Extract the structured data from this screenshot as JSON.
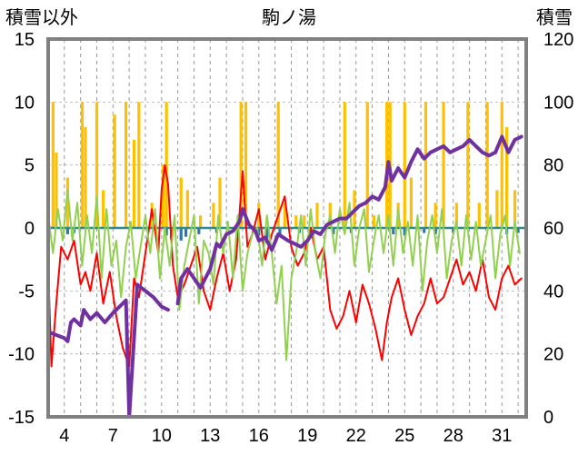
{
  "chart_data": {
    "type": "line",
    "title": "駒ノ湯",
    "ylabel_left": "積雪以外",
    "ylabel_right": "積雪",
    "ylim_left": [
      -15,
      15
    ],
    "ylim_right": [
      0,
      120
    ],
    "yticks_left": [
      "15",
      "10",
      "5",
      "0",
      "-5",
      "-10",
      "-15"
    ],
    "yticks_right": [
      "120",
      "100",
      "80",
      "60",
      "40",
      "20",
      "0"
    ],
    "xlim": [
      3,
      32.5
    ],
    "xticks": [
      4,
      7,
      10,
      13,
      16,
      19,
      22,
      25,
      28,
      31
    ],
    "xtick_labels": [
      "4",
      "7",
      "10",
      "13",
      "16",
      "19",
      "22",
      "25",
      "28",
      "31"
    ],
    "grid": true,
    "colors": {
      "snowfall": "#FFC000",
      "precip": "#2E75B6",
      "temperature": "#FF0000",
      "wind": "#92D050",
      "snow_depth": "#7030A0"
    },
    "series": [
      {
        "key": "snowfall",
        "axis": "left",
        "kind": "bar",
        "x": [
          3.3,
          3.5,
          4.2,
          5.1,
          5.3,
          6.0,
          6.4,
          7.1,
          7.8,
          8.3,
          8.6,
          9.4,
          10.1,
          10.3,
          11.2,
          11.6,
          12.4,
          13.2,
          13.6,
          14.9,
          15.2,
          16.0,
          17.2,
          17.6,
          18.3,
          18.8,
          19.6,
          20.4,
          21.3,
          21.9,
          22.7,
          23.1,
          23.9,
          24.1,
          24.6,
          25.0,
          25.4,
          26.3,
          26.9,
          27.4,
          28.2,
          28.9,
          29.6,
          30.1,
          30.7,
          31.0,
          31.3,
          31.8
        ],
        "values": [
          10,
          6,
          4,
          10,
          8,
          10,
          3,
          9,
          10,
          7,
          10,
          2,
          5,
          10,
          4,
          3,
          1,
          2,
          4,
          10,
          10,
          2,
          10,
          2,
          1,
          1,
          2,
          2,
          10,
          3,
          10,
          1,
          10,
          10,
          2,
          10,
          4,
          10,
          2,
          10,
          2,
          10,
          2,
          10,
          3,
          10,
          8,
          3
        ]
      },
      {
        "key": "precip",
        "axis": "left",
        "kind": "bar",
        "x": [
          4.2,
          4.6,
          10.3,
          10.6,
          11.2,
          11.5,
          12.3,
          13.4,
          16.0,
          16.5,
          17.3,
          18.5,
          19.3,
          20.6,
          21.7,
          24.3,
          25.0,
          26.2,
          26.9,
          28.0,
          31.3,
          32.0
        ],
        "values": [
          -0.5,
          -0.4,
          -0.6,
          -0.9,
          -1.0,
          -0.7,
          -0.5,
          -0.4,
          -0.6,
          -1.2,
          -0.5,
          -0.4,
          -0.3,
          -0.5,
          -0.4,
          -0.5,
          -0.6,
          -0.4,
          -0.5,
          -0.4,
          -0.5,
          -0.4
        ]
      },
      {
        "key": "temperature",
        "axis": "left",
        "kind": "line",
        "x": [
          3.0,
          3.2,
          3.5,
          3.8,
          4.2,
          4.6,
          5.0,
          5.3,
          5.6,
          6.0,
          6.4,
          6.8,
          7.2,
          7.6,
          8.0,
          8.3,
          8.6,
          9.0,
          9.4,
          9.8,
          10.0,
          10.2,
          10.4,
          10.7,
          11.0,
          11.4,
          11.8,
          12.2,
          12.6,
          13.0,
          13.4,
          13.8,
          14.2,
          14.6,
          15.0,
          15.3,
          15.6,
          16.0,
          16.4,
          16.8,
          17.2,
          17.6,
          18.0,
          18.4,
          18.8,
          19.2,
          19.6,
          20.0,
          20.4,
          20.8,
          21.2,
          21.6,
          22.0,
          22.4,
          22.8,
          23.2,
          23.6,
          23.9,
          24.2,
          24.6,
          25.0,
          25.4,
          25.8,
          26.2,
          26.6,
          27.0,
          27.4,
          27.8,
          28.2,
          28.6,
          29.0,
          29.4,
          29.8,
          30.2,
          30.6,
          31.0,
          31.4,
          31.8,
          32.2
        ],
        "values": [
          -3.0,
          -11.0,
          -6.0,
          -1.5,
          -2.5,
          -1.0,
          -4.5,
          -3.5,
          -5.0,
          -2.0,
          -6.0,
          -3.5,
          -7.0,
          -9.5,
          -11.0,
          -4.0,
          -5.5,
          -2.0,
          1.5,
          -2.0,
          3.0,
          5.0,
          3.5,
          -3.0,
          -5.5,
          -4.5,
          -3.0,
          -1.5,
          -5.0,
          -6.5,
          -4.0,
          -2.0,
          -5.0,
          -2.5,
          4.5,
          -1.5,
          -0.5,
          1.5,
          -2.5,
          -0.5,
          1.0,
          2.5,
          -1.5,
          -3.0,
          -2.0,
          0.0,
          -2.5,
          -1.5,
          -6.5,
          -8.0,
          -7.0,
          -5.0,
          -7.5,
          -4.5,
          -6.0,
          -8.0,
          -10.5,
          -7.5,
          -5.5,
          -4.0,
          -6.5,
          -8.5,
          -7.0,
          -6.0,
          -4.0,
          -6.0,
          -5.5,
          -4.0,
          -2.5,
          -4.5,
          -3.5,
          -5.0,
          -2.5,
          -5.5,
          -6.5,
          -4.0,
          -3.0,
          -4.5,
          -4.0
        ]
      },
      {
        "key": "wind",
        "axis": "left",
        "kind": "line",
        "x": [
          3.0,
          3.3,
          3.6,
          3.9,
          4.2,
          4.5,
          4.8,
          5.1,
          5.4,
          5.7,
          6.0,
          6.3,
          6.6,
          6.9,
          7.2,
          7.5,
          7.8,
          8.1,
          8.4,
          8.7,
          9.0,
          9.3,
          9.6,
          9.9,
          10.2,
          10.5,
          10.8,
          11.1,
          11.4,
          11.7,
          12.0,
          12.3,
          12.6,
          12.9,
          13.2,
          13.5,
          13.8,
          14.1,
          14.4,
          14.7,
          15.0,
          15.3,
          15.6,
          15.9,
          16.2,
          16.5,
          16.8,
          17.1,
          17.4,
          17.7,
          18.0,
          18.3,
          18.6,
          18.9,
          19.2,
          19.5,
          19.8,
          20.1,
          20.4,
          20.7,
          21.0,
          21.3,
          21.6,
          21.9,
          22.2,
          22.5,
          22.8,
          23.1,
          23.4,
          23.7,
          24.0,
          24.3,
          24.6,
          24.9,
          25.2,
          25.5,
          25.8,
          26.1,
          26.4,
          26.7,
          27.0,
          27.3,
          27.6,
          27.9,
          28.2,
          28.5,
          28.8,
          29.1,
          29.4,
          29.7,
          30.0,
          30.3,
          30.6,
          30.9,
          31.2,
          31.5,
          31.8,
          32.1
        ],
        "values": [
          1.0,
          -2.0,
          1.5,
          -1.0,
          3.0,
          -1.0,
          2.0,
          -3.0,
          1.0,
          -2.0,
          2.5,
          -4.0,
          1.5,
          -3.0,
          -1.0,
          -5.5,
          -1.5,
          0.5,
          -4.0,
          -1.5,
          1.0,
          -2.0,
          1.5,
          -4.0,
          0.0,
          -3.0,
          1.0,
          -6.5,
          -3.0,
          -1.0,
          1.0,
          -6.0,
          -1.0,
          -2.0,
          -4.5,
          1.0,
          -2.0,
          0.5,
          -4.0,
          1.0,
          -5.0,
          -2.0,
          -0.5,
          0.0,
          -3.0,
          1.0,
          -2.0,
          -6.0,
          -3.0,
          -10.5,
          -4.0,
          -2.0,
          1.0,
          -3.0,
          1.5,
          -2.0,
          -4.0,
          -0.5,
          1.0,
          -2.0,
          1.5,
          -0.5,
          2.0,
          -3.0,
          0.0,
          1.5,
          -3.5,
          -1.0,
          1.0,
          -2.0,
          1.0,
          -3.0,
          1.5,
          -2.0,
          0.5,
          -3.0,
          1.0,
          -5.0,
          -1.0,
          1.0,
          -2.0,
          1.5,
          -4.0,
          -1.0,
          0.5,
          -3.0,
          1.0,
          -2.5,
          0.5,
          -3.0,
          -1.0,
          1.0,
          -4.0,
          -0.5,
          1.0,
          -3.0,
          0.5,
          -2.0
        ]
      },
      {
        "key": "snow_depth",
        "axis": "right",
        "kind": "line",
        "x": [
          3.0,
          3.5,
          4.0,
          4.2,
          4.4,
          4.6,
          5.0,
          5.2,
          5.6,
          6.0,
          6.5,
          7.0,
          7.4,
          7.8,
          8.0,
          8.5,
          9.0,
          9.5,
          10.0,
          10.4,
          10.6,
          11.0,
          11.2,
          11.6,
          12.0,
          12.4,
          12.8,
          13.0,
          13.4,
          13.6,
          14.0,
          14.4,
          14.8,
          15.0,
          15.4,
          15.8,
          16.0,
          16.4,
          16.8,
          17.2,
          17.8,
          18.2,
          18.6,
          19.0,
          19.4,
          19.8,
          20.2,
          20.6,
          21.0,
          21.4,
          21.8,
          22.2,
          22.6,
          23.0,
          23.4,
          23.8,
          24.0,
          24.2,
          24.6,
          25.0,
          25.4,
          25.8,
          26.2,
          26.6,
          27.0,
          27.4,
          27.8,
          28.2,
          28.6,
          29.0,
          29.4,
          29.8,
          30.2,
          30.6,
          31.0,
          31.4,
          31.8,
          32.2
        ],
        "values": [
          27,
          26,
          25,
          24,
          30,
          31,
          29,
          34,
          31,
          33,
          30,
          33,
          35,
          37,
          0,
          42,
          40,
          38,
          35,
          34,
          null,
          36,
          44,
          47,
          44,
          41,
          45,
          47,
          55,
          54,
          58,
          59,
          62,
          66,
          61,
          59,
          56,
          57,
          53,
          58,
          56,
          55,
          54,
          56,
          59,
          58,
          61,
          62,
          63,
          63,
          65,
          67,
          68,
          70,
          69,
          73,
          81,
          75,
          79,
          76,
          81,
          85,
          82,
          84,
          85,
          86,
          84,
          85,
          86,
          88,
          86,
          84,
          83,
          84,
          89,
          84,
          88,
          89
        ]
      }
    ]
  }
}
